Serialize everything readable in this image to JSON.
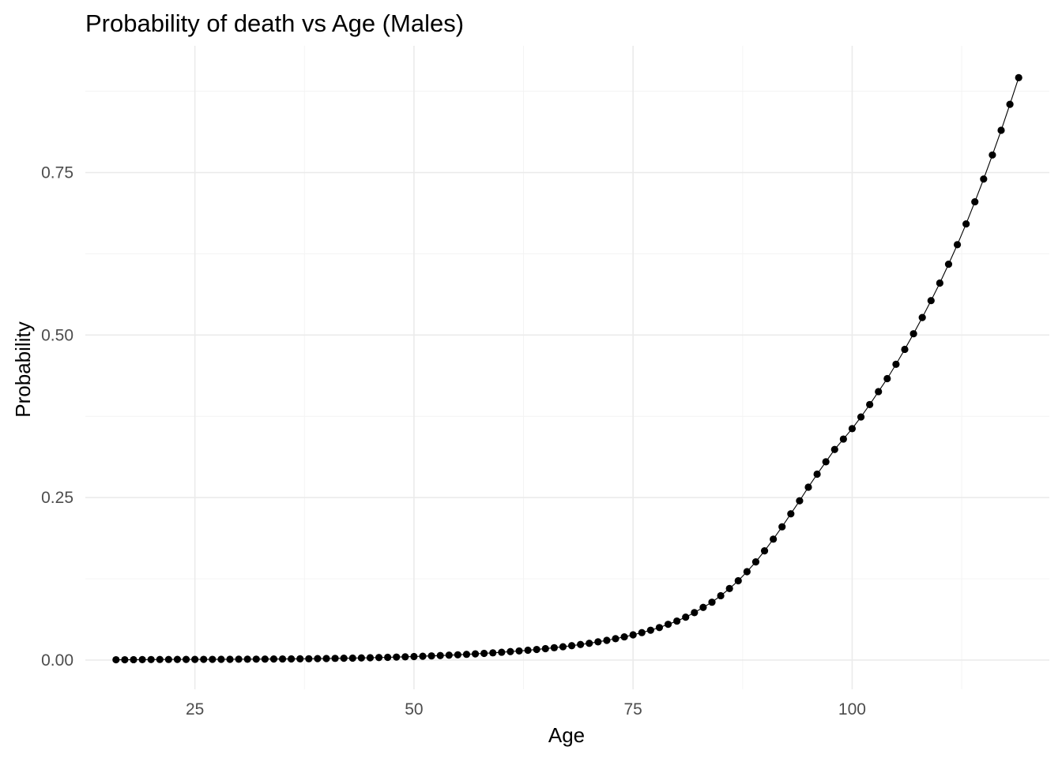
{
  "chart_data": {
    "type": "line",
    "title": "Probability of death vs Age (Males)",
    "xlabel": "Age",
    "ylabel": "Probability",
    "xlim": [
      12.5,
      122.5
    ],
    "ylim": [
      -0.045,
      0.945
    ],
    "x_ticks": [
      25,
      50,
      75,
      100
    ],
    "y_ticks": [
      0.0,
      0.25,
      0.5,
      0.75
    ],
    "x_tick_labels": [
      "25",
      "50",
      "75",
      "100"
    ],
    "y_tick_labels": [
      "0.00",
      "0.25",
      "0.50",
      "0.75"
    ],
    "grid": true,
    "legend": "none",
    "series": [
      {
        "color": "#000000",
        "markers": true,
        "x": [
          16,
          17,
          18,
          19,
          20,
          21,
          22,
          23,
          24,
          25,
          26,
          27,
          28,
          29,
          30,
          31,
          32,
          33,
          34,
          35,
          36,
          37,
          38,
          39,
          40,
          41,
          42,
          43,
          44,
          45,
          46,
          47,
          48,
          49,
          50,
          51,
          52,
          53,
          54,
          55,
          56,
          57,
          58,
          59,
          60,
          61,
          62,
          63,
          64,
          65,
          66,
          67,
          68,
          69,
          70,
          71,
          72,
          73,
          74,
          75,
          76,
          77,
          78,
          79,
          80,
          81,
          82,
          83,
          84,
          85,
          86,
          87,
          88,
          89,
          90,
          91,
          92,
          93,
          94,
          95,
          96,
          97,
          98,
          99,
          100,
          101,
          102,
          103,
          104,
          105,
          106,
          107,
          108,
          109,
          110,
          111,
          112,
          113,
          114,
          115,
          116,
          117,
          118,
          119
        ],
        "y": [
          0.0005,
          0.0005,
          0.0006,
          0.0007,
          0.0008,
          0.0009,
          0.0009,
          0.001,
          0.001,
          0.001,
          0.0011,
          0.0011,
          0.0012,
          0.0012,
          0.0013,
          0.0013,
          0.0014,
          0.0015,
          0.0016,
          0.0017,
          0.0018,
          0.0019,
          0.002,
          0.0022,
          0.0024,
          0.0026,
          0.0028,
          0.003,
          0.0033,
          0.0036,
          0.0039,
          0.0042,
          0.0046,
          0.005,
          0.0054,
          0.0059,
          0.0064,
          0.0069,
          0.0075,
          0.0081,
          0.0088,
          0.0095,
          0.0103,
          0.0111,
          0.012,
          0.013,
          0.014,
          0.0151,
          0.0163,
          0.0176,
          0.019,
          0.0205,
          0.0221,
          0.0239,
          0.0258,
          0.028,
          0.0303,
          0.0329,
          0.0357,
          0.0388,
          0.0422,
          0.0459,
          0.05,
          0.055,
          0.06,
          0.066,
          0.073,
          0.081,
          0.089,
          0.099,
          0.11,
          0.122,
          0.136,
          0.151,
          0.168,
          0.186,
          0.205,
          0.225,
          0.245,
          0.266,
          0.286,
          0.305,
          0.324,
          0.34,
          0.356,
          0.374,
          0.393,
          0.413,
          0.433,
          0.455,
          0.478,
          0.502,
          0.527,
          0.553,
          0.58,
          0.609,
          0.639,
          0.671,
          0.705,
          0.74,
          0.777,
          0.815,
          0.855,
          0.896
        ]
      }
    ]
  }
}
